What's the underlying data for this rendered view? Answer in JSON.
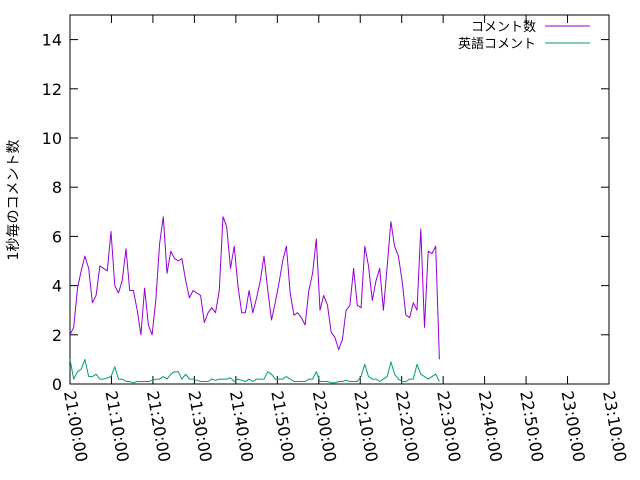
{
  "chart_data": {
    "type": "line",
    "title": "",
    "xlabel": "",
    "ylabel": "1秒毎のコメント数",
    "ylim": [
      0,
      15
    ],
    "xlim": [
      "21:00:00",
      "23:10:00"
    ],
    "xticks": [
      "21:00:00",
      "21:10:00",
      "21:20:00",
      "21:30:00",
      "21:40:00",
      "21:50:00",
      "22:00:00",
      "22:10:00",
      "22:20:00",
      "22:30:00",
      "22:40:00",
      "22:50:00",
      "23:00:00",
      "23:10:00"
    ],
    "yticks": [
      0,
      2,
      4,
      6,
      8,
      10,
      12,
      14
    ],
    "grid": false,
    "legend_position": "top-right",
    "series": [
      {
        "name": "コメント数",
        "color": "#9400d3",
        "points": [
          [
            "21:00:00",
            2.0
          ],
          [
            "21:00:54",
            2.3
          ],
          [
            "21:01:48",
            3.9
          ],
          [
            "21:02:42",
            4.6
          ],
          [
            "21:03:36",
            5.2
          ],
          [
            "21:04:30",
            4.7
          ],
          [
            "21:05:24",
            3.3
          ],
          [
            "21:06:18",
            3.6
          ],
          [
            "21:07:12",
            4.8
          ],
          [
            "21:08:06",
            4.7
          ],
          [
            "21:09:00",
            4.6
          ],
          [
            "21:09:54",
            6.2
          ],
          [
            "21:10:48",
            4.0
          ],
          [
            "21:11:42",
            3.7
          ],
          [
            "21:12:36",
            4.2
          ],
          [
            "21:13:30",
            5.5
          ],
          [
            "21:14:24",
            3.8
          ],
          [
            "21:15:18",
            3.8
          ],
          [
            "21:16:12",
            3.0
          ],
          [
            "21:17:06",
            2.0
          ],
          [
            "21:18:00",
            3.9
          ],
          [
            "21:18:54",
            2.4
          ],
          [
            "21:19:48",
            2.0
          ],
          [
            "21:20:42",
            3.4
          ],
          [
            "21:21:36",
            5.7
          ],
          [
            "21:22:30",
            6.8
          ],
          [
            "21:23:24",
            4.5
          ],
          [
            "21:24:18",
            5.4
          ],
          [
            "21:25:12",
            5.1
          ],
          [
            "21:26:06",
            5.0
          ],
          [
            "21:27:00",
            5.1
          ],
          [
            "21:27:54",
            4.2
          ],
          [
            "21:28:48",
            3.5
          ],
          [
            "21:29:42",
            3.8
          ],
          [
            "21:30:36",
            3.7
          ],
          [
            "21:31:30",
            3.6
          ],
          [
            "21:32:24",
            2.5
          ],
          [
            "21:33:18",
            2.9
          ],
          [
            "21:34:12",
            3.1
          ],
          [
            "21:35:06",
            2.9
          ],
          [
            "21:36:00",
            3.8
          ],
          [
            "21:36:54",
            6.8
          ],
          [
            "21:37:48",
            6.4
          ],
          [
            "21:38:42",
            4.7
          ],
          [
            "21:39:36",
            5.6
          ],
          [
            "21:40:30",
            4.0
          ],
          [
            "21:41:24",
            2.9
          ],
          [
            "21:42:18",
            2.9
          ],
          [
            "21:43:12",
            3.8
          ],
          [
            "21:44:06",
            2.9
          ],
          [
            "21:45:00",
            3.5
          ],
          [
            "21:45:54",
            4.2
          ],
          [
            "21:46:48",
            5.2
          ],
          [
            "21:47:42",
            3.8
          ],
          [
            "21:48:36",
            2.6
          ],
          [
            "21:49:30",
            3.3
          ],
          [
            "21:50:24",
            4.1
          ],
          [
            "21:51:18",
            5.0
          ],
          [
            "21:52:12",
            5.6
          ],
          [
            "21:53:06",
            3.7
          ],
          [
            "21:54:00",
            2.8
          ],
          [
            "21:54:54",
            2.9
          ],
          [
            "21:55:48",
            2.7
          ],
          [
            "21:56:42",
            2.4
          ],
          [
            "21:57:36",
            3.8
          ],
          [
            "21:58:30",
            4.5
          ],
          [
            "21:59:24",
            5.9
          ],
          [
            "22:00:18",
            3.0
          ],
          [
            "22:01:12",
            3.6
          ],
          [
            "22:02:06",
            3.2
          ],
          [
            "22:03:00",
            2.1
          ],
          [
            "22:03:54",
            1.9
          ],
          [
            "22:04:48",
            1.4
          ],
          [
            "22:05:42",
            1.8
          ],
          [
            "22:06:36",
            3.0
          ],
          [
            "22:07:30",
            3.2
          ],
          [
            "22:08:24",
            4.7
          ],
          [
            "22:09:18",
            3.2
          ],
          [
            "22:10:12",
            3.1
          ],
          [
            "22:11:06",
            5.6
          ],
          [
            "22:12:00",
            4.8
          ],
          [
            "22:12:54",
            3.4
          ],
          [
            "22:13:48",
            4.2
          ],
          [
            "22:14:42",
            4.7
          ],
          [
            "22:15:36",
            3.0
          ],
          [
            "22:16:30",
            4.8
          ],
          [
            "22:17:24",
            6.6
          ],
          [
            "22:18:18",
            5.6
          ],
          [
            "22:19:12",
            5.2
          ],
          [
            "22:20:06",
            4.2
          ],
          [
            "22:21:00",
            2.8
          ],
          [
            "22:21:54",
            2.7
          ],
          [
            "22:22:48",
            3.3
          ],
          [
            "22:23:42",
            3.0
          ],
          [
            "22:24:36",
            6.3
          ],
          [
            "22:25:30",
            2.3
          ],
          [
            "22:26:24",
            5.4
          ],
          [
            "22:27:18",
            5.3
          ],
          [
            "22:28:12",
            5.6
          ],
          [
            "22:29:06",
            1.0
          ]
        ]
      },
      {
        "name": "英語コメント",
        "color": "#009e73",
        "points": [
          [
            "21:00:00",
            1.0
          ],
          [
            "21:00:54",
            0.2
          ],
          [
            "21:01:48",
            0.5
          ],
          [
            "21:02:42",
            0.6
          ],
          [
            "21:03:36",
            1.0
          ],
          [
            "21:04:30",
            0.3
          ],
          [
            "21:05:24",
            0.3
          ],
          [
            "21:06:18",
            0.4
          ],
          [
            "21:07:12",
            0.2
          ],
          [
            "21:08:06",
            0.2
          ],
          [
            "21:09:00",
            0.25
          ],
          [
            "21:09:54",
            0.3
          ],
          [
            "21:10:48",
            0.7
          ],
          [
            "21:11:42",
            0.2
          ],
          [
            "21:12:36",
            0.2
          ],
          [
            "21:13:30",
            0.1
          ],
          [
            "21:14:24",
            0.1
          ],
          [
            "21:15:18",
            0.05
          ],
          [
            "21:16:12",
            0.1
          ],
          [
            "21:17:06",
            0.1
          ],
          [
            "21:18:00",
            0.1
          ],
          [
            "21:18:54",
            0.1
          ],
          [
            "21:19:48",
            0.15
          ],
          [
            "21:20:42",
            0.2
          ],
          [
            "21:21:36",
            0.2
          ],
          [
            "21:22:30",
            0.3
          ],
          [
            "21:23:24",
            0.2
          ],
          [
            "21:24:18",
            0.4
          ],
          [
            "21:25:12",
            0.5
          ],
          [
            "21:26:06",
            0.5
          ],
          [
            "21:27:00",
            0.2
          ],
          [
            "21:27:54",
            0.4
          ],
          [
            "21:28:48",
            0.2
          ],
          [
            "21:29:42",
            0.2
          ],
          [
            "21:30:36",
            0.15
          ],
          [
            "21:31:30",
            0.1
          ],
          [
            "21:32:24",
            0.1
          ],
          [
            "21:33:18",
            0.1
          ],
          [
            "21:34:12",
            0.2
          ],
          [
            "21:35:06",
            0.15
          ],
          [
            "21:36:00",
            0.2
          ],
          [
            "21:36:54",
            0.2
          ],
          [
            "21:37:48",
            0.2
          ],
          [
            "21:38:42",
            0.25
          ],
          [
            "21:39:36",
            0.1
          ],
          [
            "21:40:30",
            0.2
          ],
          [
            "21:41:24",
            0.15
          ],
          [
            "21:42:18",
            0.1
          ],
          [
            "21:43:12",
            0.2
          ],
          [
            "21:44:06",
            0.1
          ],
          [
            "21:45:00",
            0.2
          ],
          [
            "21:45:54",
            0.2
          ],
          [
            "21:46:48",
            0.2
          ],
          [
            "21:47:42",
            0.5
          ],
          [
            "21:48:36",
            0.4
          ],
          [
            "21:49:30",
            0.2
          ],
          [
            "21:50:24",
            0.2
          ],
          [
            "21:51:18",
            0.2
          ],
          [
            "21:52:12",
            0.3
          ],
          [
            "21:53:06",
            0.2
          ],
          [
            "21:54:00",
            0.1
          ],
          [
            "21:54:54",
            0.1
          ],
          [
            "21:55:48",
            0.1
          ],
          [
            "21:56:42",
            0.1
          ],
          [
            "21:57:36",
            0.2
          ],
          [
            "21:58:30",
            0.2
          ],
          [
            "21:59:24",
            0.5
          ],
          [
            "22:00:18",
            0.1
          ],
          [
            "22:01:12",
            0.1
          ],
          [
            "22:02:06",
            0.1
          ],
          [
            "22:03:00",
            0.05
          ],
          [
            "22:03:54",
            0.05
          ],
          [
            "22:04:48",
            0.1
          ],
          [
            "22:05:42",
            0.1
          ],
          [
            "22:06:36",
            0.15
          ],
          [
            "22:07:30",
            0.1
          ],
          [
            "22:08:24",
            0.1
          ],
          [
            "22:09:18",
            0.1
          ],
          [
            "22:10:12",
            0.3
          ],
          [
            "22:11:06",
            0.8
          ],
          [
            "22:12:00",
            0.3
          ],
          [
            "22:12:54",
            0.2
          ],
          [
            "22:13:48",
            0.2
          ],
          [
            "22:14:42",
            0.1
          ],
          [
            "22:15:36",
            0.2
          ],
          [
            "22:16:30",
            0.3
          ],
          [
            "22:17:24",
            0.9
          ],
          [
            "22:18:18",
            0.4
          ],
          [
            "22:19:12",
            0.2
          ],
          [
            "22:20:06",
            0.1
          ],
          [
            "22:21:00",
            0.1
          ],
          [
            "22:21:54",
            0.2
          ],
          [
            "22:22:48",
            0.2
          ],
          [
            "22:23:42",
            0.8
          ],
          [
            "22:24:36",
            0.4
          ],
          [
            "22:25:30",
            0.3
          ],
          [
            "22:26:24",
            0.2
          ],
          [
            "22:27:18",
            0.3
          ],
          [
            "22:28:12",
            0.4
          ],
          [
            "22:29:06",
            0.1
          ]
        ]
      }
    ]
  }
}
